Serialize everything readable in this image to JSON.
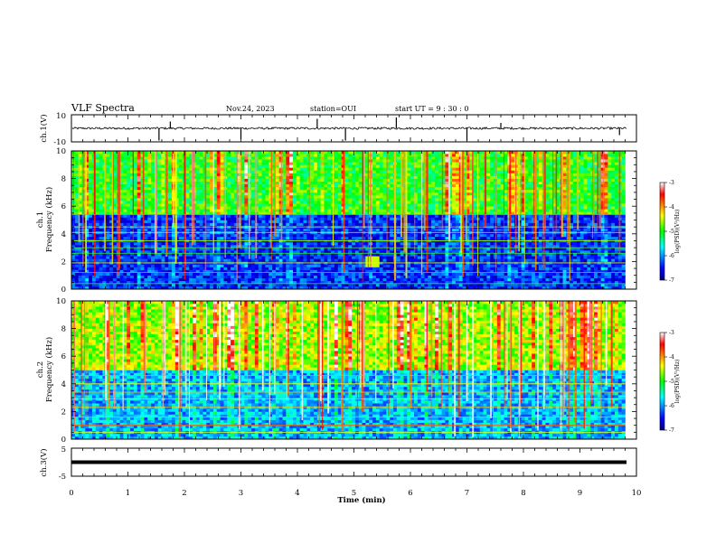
{
  "header": {
    "title": "VLF Spectra",
    "date": "Nov.24, 2023",
    "station": "station=OUI",
    "start_ut": "start UT =  9 : 30 : 0"
  },
  "chart_data": [
    {
      "type": "line",
      "panel": "ch1-waveform",
      "ylabel": "ch.1(V)",
      "ylim": [
        -10,
        10
      ],
      "ytick_labels": [
        "10",
        "-10"
      ],
      "xlim": [
        0,
        10
      ],
      "baseline_value": 0,
      "noise_amplitude": 0.8,
      "spikes": [
        {
          "x": 1.55,
          "y": -9
        },
        {
          "x": 1.75,
          "y": 5
        },
        {
          "x": 3.0,
          "y": -8
        },
        {
          "x": 4.35,
          "y": 7
        },
        {
          "x": 4.85,
          "y": -9
        },
        {
          "x": 5.75,
          "y": 8
        },
        {
          "x": 7.0,
          "y": -9
        },
        {
          "x": 7.6,
          "y": 4
        },
        {
          "x": 9.7,
          "y": -5
        }
      ],
      "line_color": "#000000"
    },
    {
      "type": "heatmap",
      "panel": "ch1-spectrogram",
      "ylabel_line1": "ch.1",
      "ylabel_line2": "Frequency (kHz)",
      "ylim": [
        0,
        10
      ],
      "yticks": [
        0,
        2,
        4,
        6,
        8,
        10
      ],
      "xlim": [
        0,
        9.8
      ],
      "colorbar": {
        "label": "log(PSD)(V²/Hz)",
        "range": [
          -7,
          -3
        ],
        "ticks": [
          -3,
          -4,
          -5,
          -6,
          -7
        ]
      },
      "structure": {
        "upper_band_khz": [
          5.5,
          10
        ],
        "lower_band_khz": [
          0,
          5.5
        ],
        "upper_band_level": -5.0,
        "lower_band_level": -6.4,
        "horizontal_lines_khz": [
          0.4,
          1.2,
          1.9,
          2.6,
          3.0,
          3.5,
          4.1,
          4.5,
          5.4
        ],
        "features": [
          {
            "t": 5.3,
            "f": 2.0,
            "level": -4.5
          }
        ]
      }
    },
    {
      "type": "heatmap",
      "panel": "ch2-spectrogram",
      "ylabel_line1": "ch.2",
      "ylabel_line2": "Frequency (kHz)",
      "ylim": [
        0,
        10
      ],
      "yticks": [
        0,
        2,
        4,
        6,
        8,
        10
      ],
      "xlim": [
        0,
        9.8
      ],
      "colorbar": {
        "label": "log(PSD)(V²/Hz)",
        "range": [
          -7,
          -3
        ],
        "ticks": [
          -3,
          -4,
          -5,
          -6,
          -7
        ]
      },
      "structure": {
        "upper_band_khz": [
          5.0,
          10
        ],
        "lower_band_khz": [
          0,
          5.0
        ],
        "upper_band_level": -4.6,
        "lower_band_level": -5.9,
        "horizontal_lines_khz": [
          0.5,
          1.0,
          1.6,
          2.3,
          2.9,
          3.4,
          4.0,
          4.6
        ],
        "features": []
      }
    },
    {
      "type": "line",
      "panel": "ch3-waveform",
      "ylabel": "ch.3(V)",
      "ylim": [
        -5,
        5
      ],
      "ytick_labels": [
        "5",
        "-5"
      ],
      "xlim": [
        0,
        10
      ],
      "baseline_value": 0,
      "line_color": "#000000"
    }
  ],
  "xaxis": {
    "label": "Time (min)",
    "tick_labels": [
      "0",
      "1",
      "2",
      "3",
      "4",
      "5",
      "6",
      "7",
      "8",
      "9",
      "10"
    ]
  }
}
